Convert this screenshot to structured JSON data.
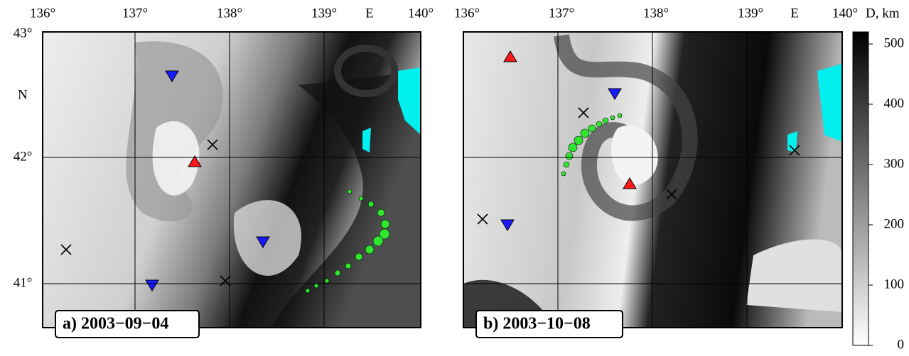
{
  "panels": [
    {
      "label": "a) 2003−09−04",
      "lon_labels": [
        "136°",
        "137°",
        "138°",
        "139°",
        "E",
        "140°"
      ],
      "lat_labels": [
        "43°",
        "N",
        "42°",
        "41°"
      ]
    },
    {
      "label": "b) 2003−10−08",
      "lon_labels": [
        "136°",
        "137°",
        "138°",
        "139°",
        "E",
        "140°"
      ]
    }
  ],
  "colorbar": {
    "title": "D, km",
    "range": [
      0,
      520
    ],
    "ticks": [
      0,
      100,
      200,
      300,
      400,
      500
    ]
  }
}
